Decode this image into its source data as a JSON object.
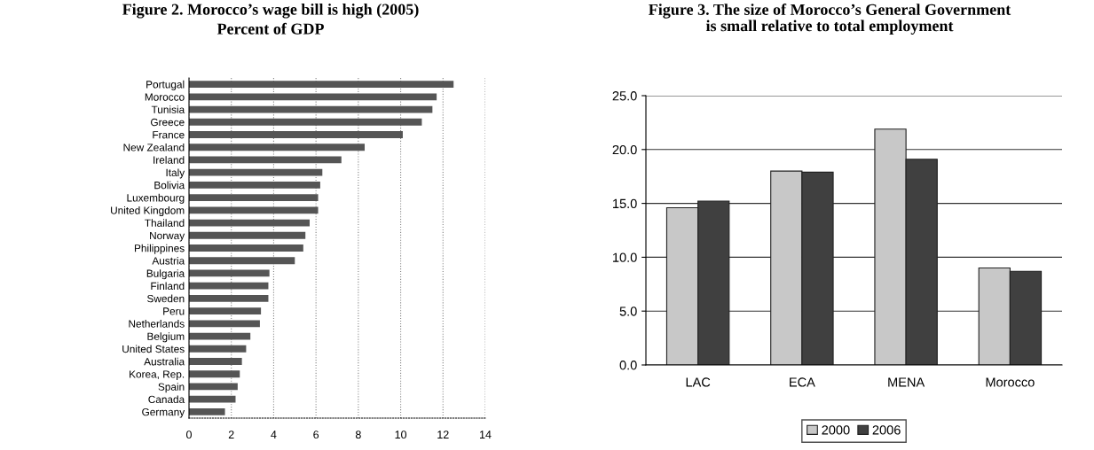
{
  "chart_data": [
    {
      "type": "bar",
      "orientation": "horizontal",
      "title": "Figure 2. Morocco’s wage bill is high (2005)",
      "subtitle": "Percent of GDP",
      "categories": [
        "Portugal",
        "Morocco",
        "Tunisia",
        "Greece",
        "France",
        "New Zealand",
        "Ireland",
        "Italy",
        "Bolivia",
        "Luxembourg",
        "United Kingdom",
        "Thailand",
        "Norway",
        "Philippines",
        "Austria",
        "Bulgaria",
        "Finland",
        "Sweden",
        "Peru",
        "Netherlands",
        "Belgium",
        "United States",
        "Australia",
        "Korea, Rep.",
        "Spain",
        "Canada",
        "Germany"
      ],
      "values": [
        12.5,
        11.7,
        11.5,
        11.0,
        10.1,
        8.3,
        7.2,
        6.3,
        6.2,
        6.1,
        6.1,
        5.7,
        5.5,
        5.4,
        5.0,
        3.8,
        3.75,
        3.75,
        3.4,
        3.35,
        2.9,
        2.7,
        2.5,
        2.4,
        2.3,
        2.2,
        1.7
      ],
      "color": "#555555",
      "xlim": [
        0,
        14
      ],
      "xticks": [
        0,
        2,
        4,
        6,
        8,
        10,
        12,
        14
      ],
      "grid": "x"
    },
    {
      "type": "bar",
      "title": "Figure 3. The size of Morocco’s General Government\nis small relative to total employment",
      "categories": [
        "LAC",
        "ECA",
        "MENA",
        "Morocco"
      ],
      "series": [
        {
          "name": "2000",
          "color": "#c8c8c8",
          "values": [
            14.6,
            18.0,
            21.9,
            9.0
          ]
        },
        {
          "name": "2006",
          "color": "#404040",
          "values": [
            15.2,
            17.9,
            19.1,
            8.7
          ]
        }
      ],
      "ylim": [
        0,
        25
      ],
      "yticks": [
        {
          "value": 0,
          "label": "0.0"
        },
        {
          "value": 5,
          "label": "5.0"
        },
        {
          "value": 10,
          "label": "10.0"
        },
        {
          "value": 15,
          "label": "15.0"
        },
        {
          "value": 20,
          "label": "20.0"
        },
        {
          "value": 25,
          "label": "25.0"
        }
      ],
      "grid": "y",
      "legend": "bottom"
    }
  ]
}
